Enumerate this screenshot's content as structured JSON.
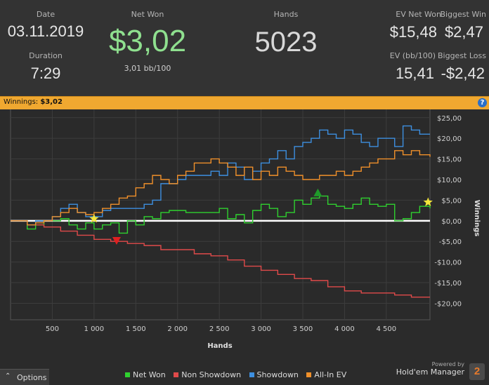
{
  "summary": {
    "date_label": "Date",
    "date_value": "03.11.2019",
    "duration_label": "Duration",
    "duration_value": "7:29",
    "net_won_label": "Net Won",
    "net_won_value": "$3,02",
    "net_won_sub": "3,01 bb/100",
    "hands_label": "Hands",
    "hands_value": "5023",
    "ev_net_won_label": "EV Net Won",
    "ev_net_won_value": "$15,48",
    "biggest_win_label": "Biggest Win",
    "biggest_win_value": "$2,47",
    "ev_bb_label": "EV (bb/100)",
    "ev_bb_value": "15,41",
    "biggest_loss_label": "Biggest Loss",
    "biggest_loss_value": "-$2,42",
    "net_won_color": "#8fe08f"
  },
  "bar": {
    "title": "Winnings: ",
    "value": "$3,02",
    "help_label": "?"
  },
  "chart_data": {
    "type": "line",
    "xlabel": "Hands",
    "ylabel": "Winnings",
    "xlim": [
      0,
      5023
    ],
    "ylim": [
      -24,
      27
    ],
    "x_ticks": [
      500,
      1000,
      1500,
      2000,
      2500,
      3000,
      3500,
      4000,
      4500
    ],
    "x_tick_labels": [
      "500",
      "1 000",
      "1 500",
      "2 000",
      "2 500",
      "3 000",
      "3 500",
      "4 000",
      "4 500"
    ],
    "y_ticks": [
      25,
      20,
      15,
      10,
      5,
      0,
      -5,
      -10,
      -15,
      -20
    ],
    "y_tick_labels": [
      "$25,00",
      "$20,00",
      "$15,00",
      "$10,00",
      "$5,00",
      "$0,00",
      "-$5,00",
      "-$10,00",
      "-$15,00",
      "-$20,00"
    ],
    "grid": true,
    "legend_position": "bottom",
    "series": [
      {
        "name": "Net Won",
        "color": "#2fd12f",
        "x": [
          0,
          200,
          300,
          400,
          500,
          600,
          700,
          800,
          900,
          1000,
          1100,
          1200,
          1300,
          1400,
          1500,
          1600,
          1700,
          1800,
          1900,
          2000,
          2100,
          2200,
          2300,
          2400,
          2500,
          2600,
          2700,
          2800,
          2900,
          3000,
          3100,
          3200,
          3300,
          3400,
          3500,
          3600,
          3700,
          3800,
          3900,
          4000,
          4100,
          4200,
          4300,
          4400,
          4500,
          4600,
          4700,
          4800,
          4900,
          5023
        ],
        "y": [
          0,
          -2,
          -1,
          0,
          0,
          0.5,
          -1,
          -2,
          -0.5,
          -2,
          -1,
          -0.5,
          -3,
          0,
          -1,
          1,
          0.5,
          2,
          2.5,
          2.5,
          2,
          2,
          2,
          2,
          3,
          0.5,
          1.5,
          -0.5,
          2.5,
          4,
          3,
          1,
          2,
          5,
          4,
          5.5,
          6,
          4,
          3.5,
          3,
          4,
          5.5,
          4,
          3.5,
          4,
          0,
          0.5,
          2,
          3.5,
          3
        ]
      },
      {
        "name": "Non Showdown",
        "color": "#e04a4a",
        "x": [
          0,
          200,
          400,
          600,
          800,
          1000,
          1200,
          1400,
          1600,
          1800,
          2000,
          2200,
          2400,
          2600,
          2800,
          3000,
          3200,
          3400,
          3600,
          3800,
          4000,
          4200,
          4400,
          4600,
          4800,
          5023
        ],
        "y": [
          0,
          -1,
          -1.5,
          -2.5,
          -3.5,
          -4.5,
          -5,
          -5.5,
          -6,
          -7,
          -7,
          -8,
          -8.5,
          -9.5,
          -11,
          -12,
          -13,
          -14,
          -14.5,
          -16,
          -17,
          -17.5,
          -17.5,
          -18,
          -18.5,
          -18.5
        ]
      },
      {
        "name": "Showdown",
        "color": "#3d8fe0",
        "x": [
          0,
          200,
          300,
          400,
          500,
          600,
          700,
          800,
          900,
          1000,
          1100,
          1200,
          1300,
          1400,
          1500,
          1600,
          1700,
          1800,
          1900,
          2000,
          2100,
          2200,
          2300,
          2400,
          2500,
          2600,
          2700,
          2800,
          2900,
          3000,
          3100,
          3200,
          3300,
          3400,
          3500,
          3600,
          3700,
          3800,
          3900,
          4000,
          4100,
          4200,
          4300,
          4400,
          4500,
          4600,
          4700,
          4800,
          4900,
          5023
        ],
        "y": [
          0,
          -1,
          0,
          0,
          1,
          3,
          4,
          2,
          1,
          1,
          2.5,
          3,
          3,
          3,
          3,
          4,
          5,
          9,
          9,
          10,
          11,
          11,
          11,
          12,
          11,
          14,
          13,
          10,
          12,
          14,
          15,
          17,
          15,
          18,
          19,
          20,
          22,
          21,
          20,
          22,
          21,
          19,
          18,
          20,
          20,
          18,
          23,
          22,
          21,
          21
        ]
      },
      {
        "name": "All-In EV",
        "color": "#f0902a",
        "x": [
          0,
          200,
          300,
          400,
          500,
          600,
          700,
          800,
          900,
          1000,
          1100,
          1200,
          1300,
          1400,
          1500,
          1600,
          1700,
          1800,
          1900,
          2000,
          2100,
          2200,
          2300,
          2400,
          2500,
          2600,
          2700,
          2800,
          2900,
          3000,
          3100,
          3200,
          3300,
          3400,
          3500,
          3600,
          3700,
          3800,
          3900,
          4000,
          4100,
          4200,
          4300,
          4400,
          4500,
          4600,
          4700,
          4800,
          4900,
          5023
        ],
        "y": [
          0,
          -1,
          -0.5,
          0,
          1,
          2,
          3,
          2,
          1.5,
          2,
          3,
          4,
          5.5,
          6,
          8,
          9,
          11,
          10,
          9,
          11,
          12,
          14,
          14,
          15,
          14,
          13,
          11,
          13,
          10,
          12,
          11,
          13,
          12,
          11,
          10,
          10,
          11,
          11,
          12,
          11,
          12,
          13,
          14,
          15,
          15,
          17,
          16,
          17,
          16,
          15.5
        ]
      }
    ],
    "markers": [
      {
        "type": "star",
        "x": 1000,
        "y": 0.5,
        "color": "#f5e63a"
      },
      {
        "type": "star",
        "x": 5000,
        "y": 4.5,
        "color": "#f5e63a"
      },
      {
        "type": "triangle-down",
        "x": 1270,
        "y": -4.8,
        "color": "#e02020"
      },
      {
        "type": "triangle-up",
        "x": 3680,
        "y": 6.8,
        "color": "#1f9a2a"
      }
    ]
  },
  "footer": {
    "options_label": "Options",
    "legend": [
      {
        "label": "Net Won",
        "color": "#2fd12f"
      },
      {
        "label": "Non Showdown",
        "color": "#e04a4a"
      },
      {
        "label": "Showdown",
        "color": "#3d8fe0"
      },
      {
        "label": "All-In EV",
        "color": "#f0902a"
      }
    ],
    "powered_by": "Powered by",
    "product_name": "Hold'em Manager",
    "logo_text": "2"
  }
}
